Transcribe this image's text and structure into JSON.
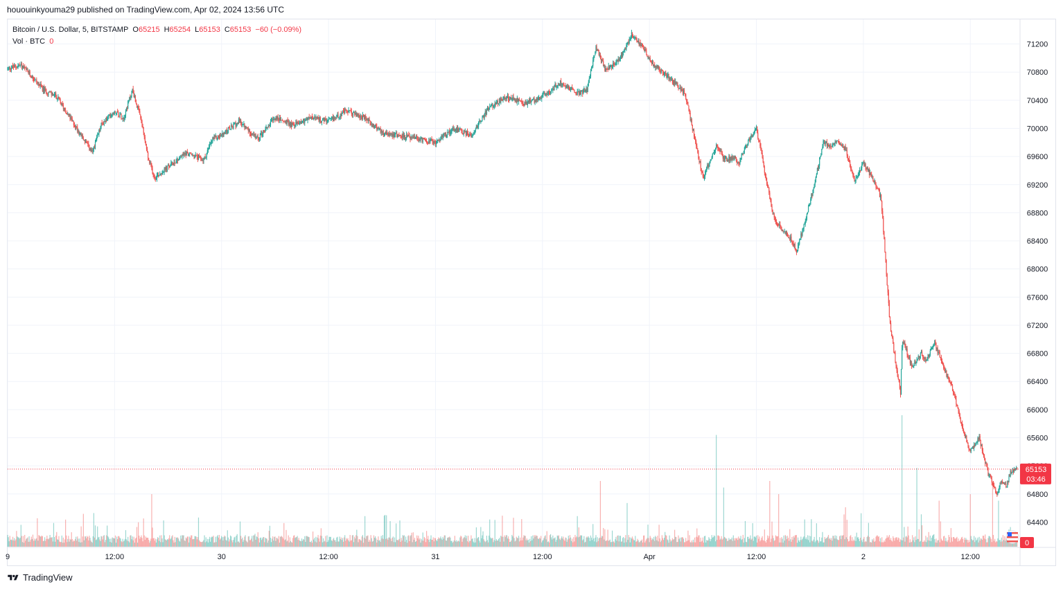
{
  "header": {
    "published": "hououinkyouma29 published on TradingView.com, Apr 02, 2024 13:56 UTC"
  },
  "legend": {
    "symbol": "Bitcoin / U.S. Dollar, 5, BITSTAMP",
    "o_label": "O",
    "o_value": "65215",
    "h_label": "H",
    "h_value": "65254",
    "l_label": "L",
    "l_value": "65153",
    "c_label": "C",
    "c_value": "65153",
    "change": "−60 (−0.09%)",
    "vol_label": "Vol · BTC",
    "vol_value": "0"
  },
  "footer": {
    "brand": "TradingView"
  },
  "colors": {
    "up": "#26a69a",
    "down": "#ef5350",
    "price_tag": "#f23645",
    "grid": "#f0f3fa"
  },
  "chart_data": {
    "type": "candlestick",
    "symbol": "Bitcoin / U.S. Dollar",
    "interval": "5",
    "exchange": "BITSTAMP",
    "x_tick_labels": [
      "9",
      "12:00",
      "30",
      "12:00",
      "31",
      "12:00",
      "Apr",
      "12:00",
      "2",
      "12:00"
    ],
    "x_tick_times": [
      0,
      12,
      24,
      36,
      48,
      60,
      72,
      84,
      96,
      108
    ],
    "y_tick_values": [
      64400,
      64800,
      65200,
      65600,
      66000,
      66400,
      66800,
      67200,
      67600,
      68000,
      68400,
      68800,
      69200,
      69600,
      70000,
      70400,
      70800,
      71200
    ],
    "ylim": [
      64050,
      71550
    ],
    "xlim": [
      0,
      113.5
    ],
    "last_price": 65153,
    "last_price_label": "65153",
    "countdown": "03:46",
    "volume_last_label": "0",
    "grid": true,
    "path_hours": [
      0,
      1.5,
      3,
      4,
      5.5,
      7,
      8.5,
      9.5,
      10.5,
      12,
      13,
      14,
      15,
      15.8,
      16.5,
      18,
      20,
      22,
      23,
      24,
      26,
      28,
      30,
      32,
      34,
      36,
      38,
      40,
      42,
      44,
      46,
      48,
      50,
      52,
      54,
      56,
      58,
      60,
      62,
      64,
      65,
      66,
      67,
      68,
      69,
      70,
      71.5,
      72.5,
      74,
      76,
      78,
      79.5,
      80.5,
      81.5,
      82,
      83,
      84,
      86,
      88,
      88.5,
      89.5,
      90.5,
      91.5,
      92.5,
      93,
      94,
      95,
      96,
      97,
      98,
      99,
      100.2,
      100.3,
      100.5,
      101.5,
      102.5,
      103,
      104,
      105,
      106,
      107,
      108,
      109,
      110,
      111,
      111.5,
      112,
      112.5,
      113.3
    ],
    "path_prices": [
      70850,
      70900,
      70700,
      70550,
      70450,
      70150,
      69850,
      69650,
      70050,
      70250,
      70150,
      70550,
      70100,
      69550,
      69300,
      69450,
      69650,
      69550,
      69850,
      69900,
      70100,
      69850,
      70150,
      70050,
      70150,
      70100,
      70250,
      70150,
      69950,
      69900,
      69850,
      69800,
      70000,
      69900,
      70300,
      70450,
      70350,
      70450,
      70650,
      70500,
      70550,
      71150,
      70850,
      70900,
      71050,
      71350,
      71100,
      70900,
      70750,
      70500,
      69300,
      69750,
      69550,
      69600,
      69500,
      69800,
      70000,
      68700,
      68400,
      68250,
      68700,
      69200,
      69800,
      69750,
      69850,
      69700,
      69250,
      69500,
      69300,
      69000,
      67200,
      66200,
      66900,
      66950,
      66600,
      66800,
      66700,
      66950,
      66600,
      66300,
      65800,
      65400,
      65600,
      65100,
      64800,
      65000,
      64900,
      65100,
      65153
    ],
    "volume_spikes": [
      [
        1,
        0.12
      ],
      [
        8.5,
        0.25
      ],
      [
        14.5,
        0.15
      ],
      [
        16.2,
        0.4
      ],
      [
        17.5,
        0.2
      ],
      [
        31,
        0.18
      ],
      [
        44,
        0.2
      ],
      [
        47,
        0.12
      ],
      [
        66.5,
        0.5
      ],
      [
        69.5,
        0.2
      ],
      [
        79.5,
        0.85
      ],
      [
        80.3,
        0.45
      ],
      [
        85.5,
        0.5
      ],
      [
        86.5,
        0.4
      ],
      [
        94,
        0.3
      ],
      [
        100.3,
        1.0
      ],
      [
        102,
        0.6
      ],
      [
        104.5,
        0.35
      ],
      [
        108,
        0.4
      ],
      [
        110.5,
        0.5
      ],
      [
        111.2,
        0.35
      ]
    ]
  }
}
